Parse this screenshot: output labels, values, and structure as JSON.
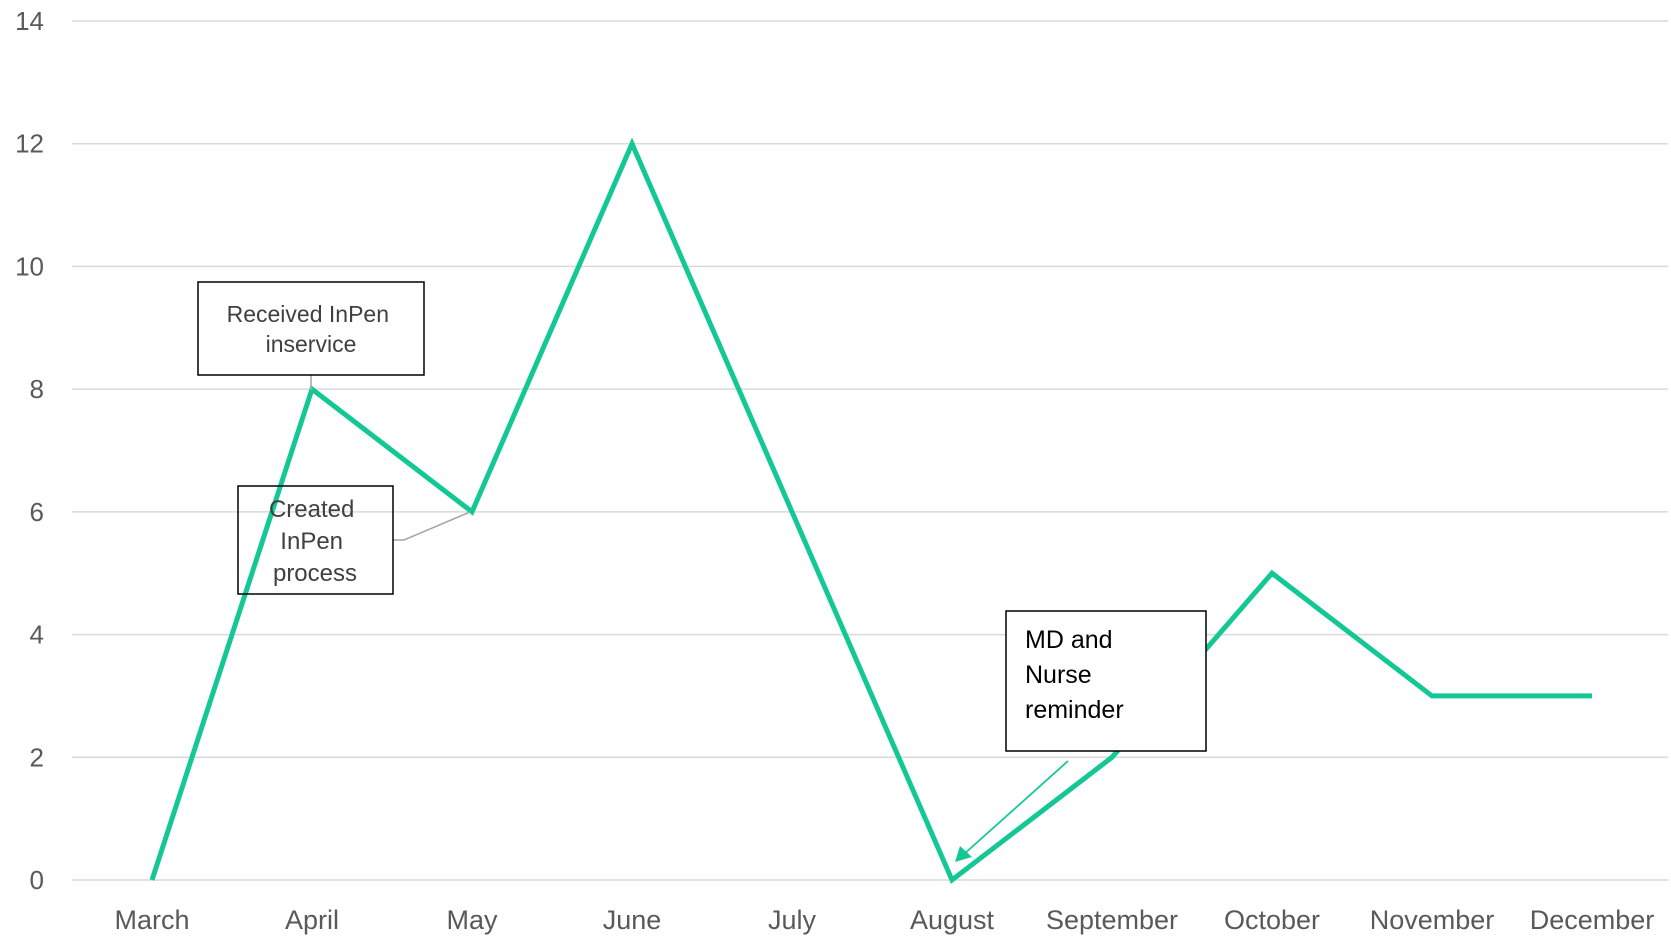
{
  "chart_data": {
    "type": "line",
    "title": "",
    "xlabel": "",
    "ylabel": "",
    "categories": [
      "March",
      "April",
      "May",
      "June",
      "July",
      "August",
      "September",
      "October",
      "November",
      "December"
    ],
    "series": [
      {
        "values": [
          0,
          8,
          6,
          12,
          6,
          0,
          2,
          5,
          3,
          3
        ]
      }
    ],
    "ylim": [
      0,
      14
    ],
    "yticks": [
      0,
      2,
      4,
      6,
      8,
      10,
      12,
      14
    ],
    "grid": true,
    "line_color": "#14C896",
    "annotations": [
      {
        "lines": [
          "Received InPen",
          "inservice"
        ],
        "category": "April",
        "value": 8
      },
      {
        "lines": [
          "Created",
          "InPen",
          "process"
        ],
        "category": "May",
        "value": 6
      },
      {
        "lines": [
          "MD and",
          "Nurse",
          "reminder"
        ],
        "category": "August",
        "value": 0
      }
    ]
  },
  "colors": {
    "line": "#14C896",
    "grid": "#D9D9D9",
    "tick_text": "#595959",
    "box_border": "#000000",
    "leader": "#A6A6A6"
  }
}
